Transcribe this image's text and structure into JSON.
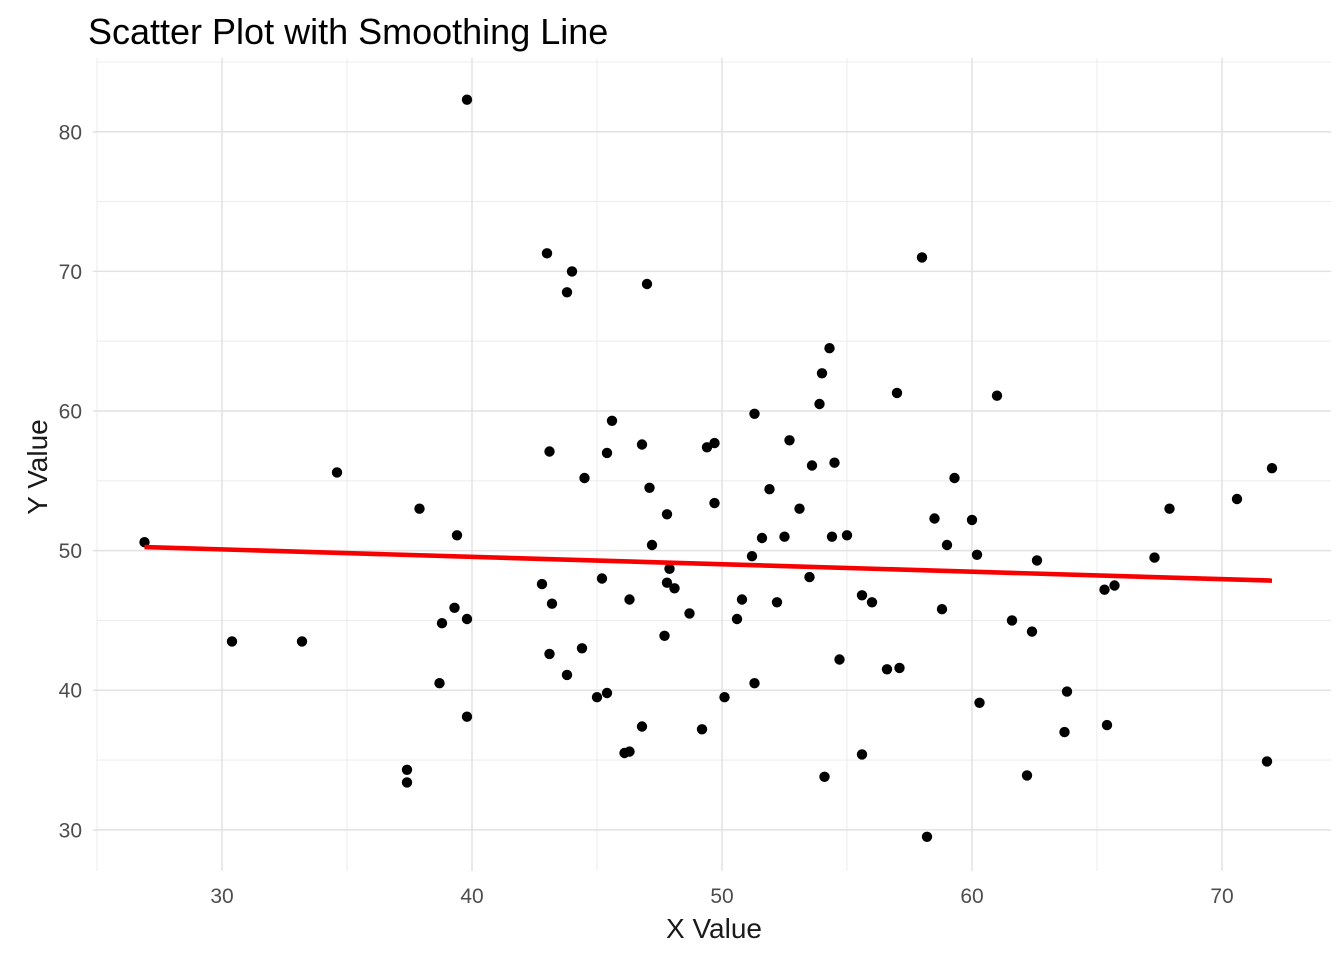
{
  "title": "Scatter Plot with Smoothing Line",
  "chart_data": {
    "type": "scatter",
    "title": "Scatter Plot with Smoothing Line",
    "xlabel": "X Value",
    "ylabel": "Y Value",
    "x_ticks": [
      30,
      40,
      50,
      60,
      70
    ],
    "y_ticks": [
      30,
      40,
      50,
      60,
      70,
      80
    ],
    "x_minor_ticks": [
      25,
      35,
      45,
      55,
      65
    ],
    "y_minor_ticks": [
      35,
      45,
      55,
      65,
      75,
      85
    ],
    "xlim": [
      25.0,
      74.36
    ],
    "ylim": [
      27.05,
      85.0
    ],
    "grid": "major+minor",
    "legend": "none",
    "point_color": "#000000",
    "point_radius": 5.2,
    "background": "#ffffff",
    "major_grid_color": "#e2e2e2",
    "minor_grid_color": "#ededed",
    "tick_label_color": "#4d4d4d",
    "smooth_line": {
      "color": "#f80000",
      "width": 4.6,
      "x1": 26.9,
      "y1": 50.25,
      "x2": 72.0,
      "y2": 47.85
    },
    "points": [
      [
        26.9,
        50.6
      ],
      [
        30.4,
        43.5
      ],
      [
        33.2,
        43.5
      ],
      [
        34.6,
        55.6
      ],
      [
        37.4,
        34.3
      ],
      [
        37.4,
        33.4
      ],
      [
        37.9,
        53.0
      ],
      [
        38.7,
        40.5
      ],
      [
        38.8,
        44.8
      ],
      [
        39.3,
        45.9
      ],
      [
        39.8,
        45.1
      ],
      [
        39.4,
        51.1
      ],
      [
        39.8,
        38.1
      ],
      [
        39.8,
        82.3
      ],
      [
        42.8,
        47.6
      ],
      [
        43.1,
        42.6
      ],
      [
        43.1,
        57.1
      ],
      [
        43.0,
        71.3
      ],
      [
        43.2,
        46.2
      ],
      [
        43.8,
        41.1
      ],
      [
        43.8,
        68.5
      ],
      [
        44.0,
        70.0
      ],
      [
        44.4,
        43.0
      ],
      [
        44.5,
        55.2
      ],
      [
        45.0,
        39.5
      ],
      [
        45.4,
        39.8
      ],
      [
        45.2,
        48.0
      ],
      [
        45.4,
        57.0
      ],
      [
        45.6,
        59.3
      ],
      [
        46.1,
        35.5
      ],
      [
        46.3,
        35.6
      ],
      [
        46.3,
        46.5
      ],
      [
        46.8,
        37.4
      ],
      [
        46.8,
        57.6
      ],
      [
        47.0,
        69.1
      ],
      [
        47.1,
        54.5
      ],
      [
        47.2,
        50.4
      ],
      [
        47.7,
        43.9
      ],
      [
        47.8,
        52.6
      ],
      [
        47.9,
        48.7
      ],
      [
        47.8,
        47.7
      ],
      [
        48.1,
        47.3
      ],
      [
        48.7,
        45.5
      ],
      [
        49.2,
        37.2
      ],
      [
        49.4,
        57.4
      ],
      [
        49.7,
        57.7
      ],
      [
        49.7,
        53.4
      ],
      [
        50.1,
        39.5
      ],
      [
        50.6,
        45.1
      ],
      [
        50.8,
        46.5
      ],
      [
        51.2,
        49.6
      ],
      [
        51.3,
        40.5
      ],
      [
        51.3,
        59.8
      ],
      [
        51.6,
        50.9
      ],
      [
        51.9,
        54.4
      ],
      [
        52.2,
        46.3
      ],
      [
        52.5,
        51.0
      ],
      [
        52.7,
        57.9
      ],
      [
        53.1,
        53.0
      ],
      [
        53.5,
        48.1
      ],
      [
        53.6,
        56.1
      ],
      [
        54.5,
        56.3
      ],
      [
        53.9,
        60.5
      ],
      [
        54.0,
        62.7
      ],
      [
        54.3,
        64.5
      ],
      [
        54.1,
        33.8
      ],
      [
        54.4,
        51.0
      ],
      [
        55.0,
        51.1
      ],
      [
        54.7,
        42.2
      ],
      [
        55.6,
        35.4
      ],
      [
        55.6,
        46.8
      ],
      [
        56.0,
        46.3
      ],
      [
        56.6,
        41.5
      ],
      [
        57.1,
        41.6
      ],
      [
        57.0,
        61.3
      ],
      [
        58.0,
        71.0
      ],
      [
        58.2,
        29.5
      ],
      [
        58.5,
        52.3
      ],
      [
        58.8,
        45.8
      ],
      [
        59.0,
        50.4
      ],
      [
        59.3,
        55.2
      ],
      [
        60.0,
        52.2
      ],
      [
        60.2,
        49.7
      ],
      [
        60.3,
        39.1
      ],
      [
        61.0,
        61.1
      ],
      [
        61.6,
        45.0
      ],
      [
        62.2,
        33.9
      ],
      [
        62.4,
        44.2
      ],
      [
        62.6,
        49.3
      ],
      [
        63.7,
        37.0
      ],
      [
        63.8,
        39.9
      ],
      [
        65.3,
        47.2
      ],
      [
        65.7,
        47.5
      ],
      [
        65.4,
        37.5
      ],
      [
        67.3,
        49.5
      ],
      [
        67.9,
        53.0
      ],
      [
        70.6,
        53.7
      ],
      [
        71.8,
        34.9
      ],
      [
        72.0,
        55.9
      ]
    ]
  }
}
